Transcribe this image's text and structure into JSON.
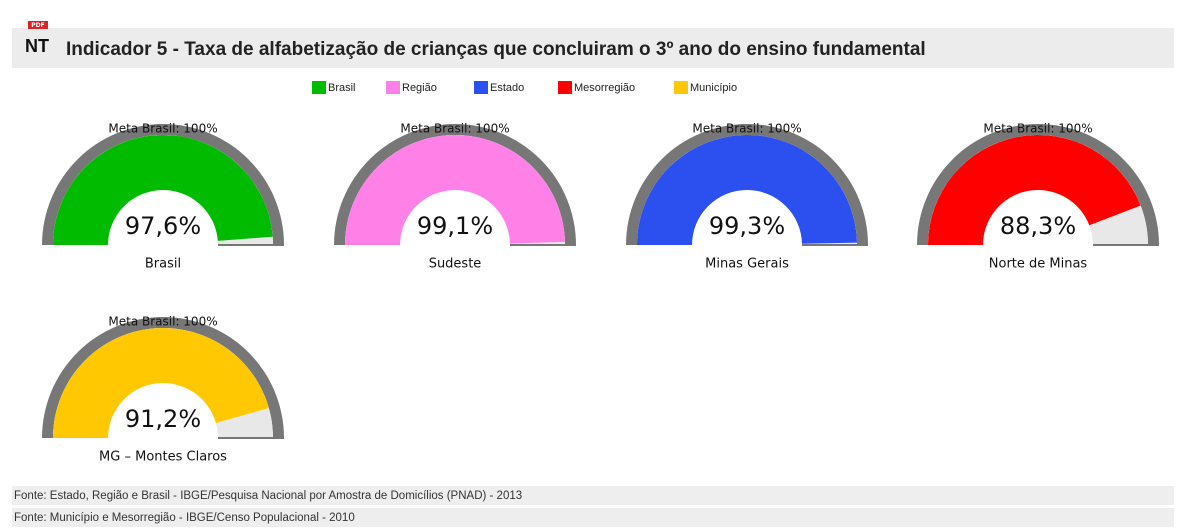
{
  "chart_data": {
    "type": "gauge",
    "icon_label": "NT",
    "icon_badge": "PDF",
    "title": "Indicador 5 - Taxa de alfabetização de crianças que concluiram o 3º ano do ensino fundamental",
    "ylim": [
      0,
      100
    ],
    "series": [
      {
        "name": "Brasil",
        "color": "#00bb00",
        "gauge_label": "Brasil",
        "target_label": "Meta Brasil: 100%",
        "target": 100,
        "values": [
          97.6
        ],
        "value_labels": [
          "97,6%"
        ]
      },
      {
        "name": "Região",
        "color": "#ff80e6",
        "gauge_label": "Sudeste",
        "target_label": "Meta Brasil: 100%",
        "target": 100,
        "values": [
          99.1
        ],
        "value_labels": [
          "99,1%"
        ]
      },
      {
        "name": "Estado",
        "color": "#2c4ff0",
        "gauge_label": "Minas Gerais",
        "target_label": "Meta Brasil: 100%",
        "target": 100,
        "values": [
          99.3
        ],
        "value_labels": [
          "99,3%"
        ]
      },
      {
        "name": "Mesorregião",
        "color": "#ff0000",
        "gauge_label": "Norte de Minas",
        "target_label": "Meta Brasil: 100%",
        "target": 100,
        "values": [
          88.3
        ],
        "value_labels": [
          "88,3%"
        ]
      },
      {
        "name": "Município",
        "color": "#ffc800",
        "gauge_label": "MG – Montes Claros",
        "target_label": "Meta Brasil: 100%",
        "target": 100,
        "values": [
          91.2
        ],
        "value_labels": [
          "91,2%"
        ]
      }
    ],
    "sources": [
      "Fonte: Estado, Região e Brasil - IBGE/Pesquisa Nacional por Amostra de Domicílios (PNAD) - 2013",
      "Fonte: Município e Mesorregião - IBGE/Censo Populacional - 2010"
    ]
  }
}
